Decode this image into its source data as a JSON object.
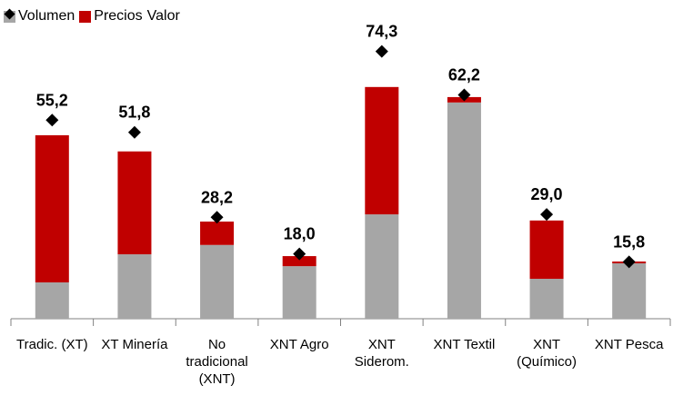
{
  "chart_data": {
    "type": "bar",
    "stacked": true,
    "categories": [
      "Tradic. (XT)",
      "XT Minería",
      "No tradicional (XNT)",
      "XNT Agro",
      "XNT Siderom.",
      "XNT Textil",
      "XNT (Químico)",
      "XNT Pesca"
    ],
    "series": [
      {
        "name": "Volumen",
        "color": "#a6a6a6",
        "values": [
          10.1,
          17.9,
          20.5,
          14.6,
          29.0,
          60.1,
          11.1,
          15.4
        ]
      },
      {
        "name": "Precios",
        "color": "#c00000",
        "values": [
          40.9,
          28.6,
          6.5,
          2.8,
          35.4,
          1.5,
          16.2,
          0.5
        ]
      },
      {
        "name": "Valor",
        "type": "scatter",
        "marker": "diamond",
        "color": "#000000",
        "values": [
          55.2,
          51.8,
          28.2,
          18.0,
          74.3,
          62.2,
          29.0,
          15.8
        ],
        "value_labels": [
          "55,2",
          "51,8",
          "28,2",
          "18,0",
          "74,3",
          "62,2",
          "29,0",
          "15,8"
        ]
      }
    ],
    "ylim": [
      0,
      80
    ],
    "legend": "top-left"
  }
}
